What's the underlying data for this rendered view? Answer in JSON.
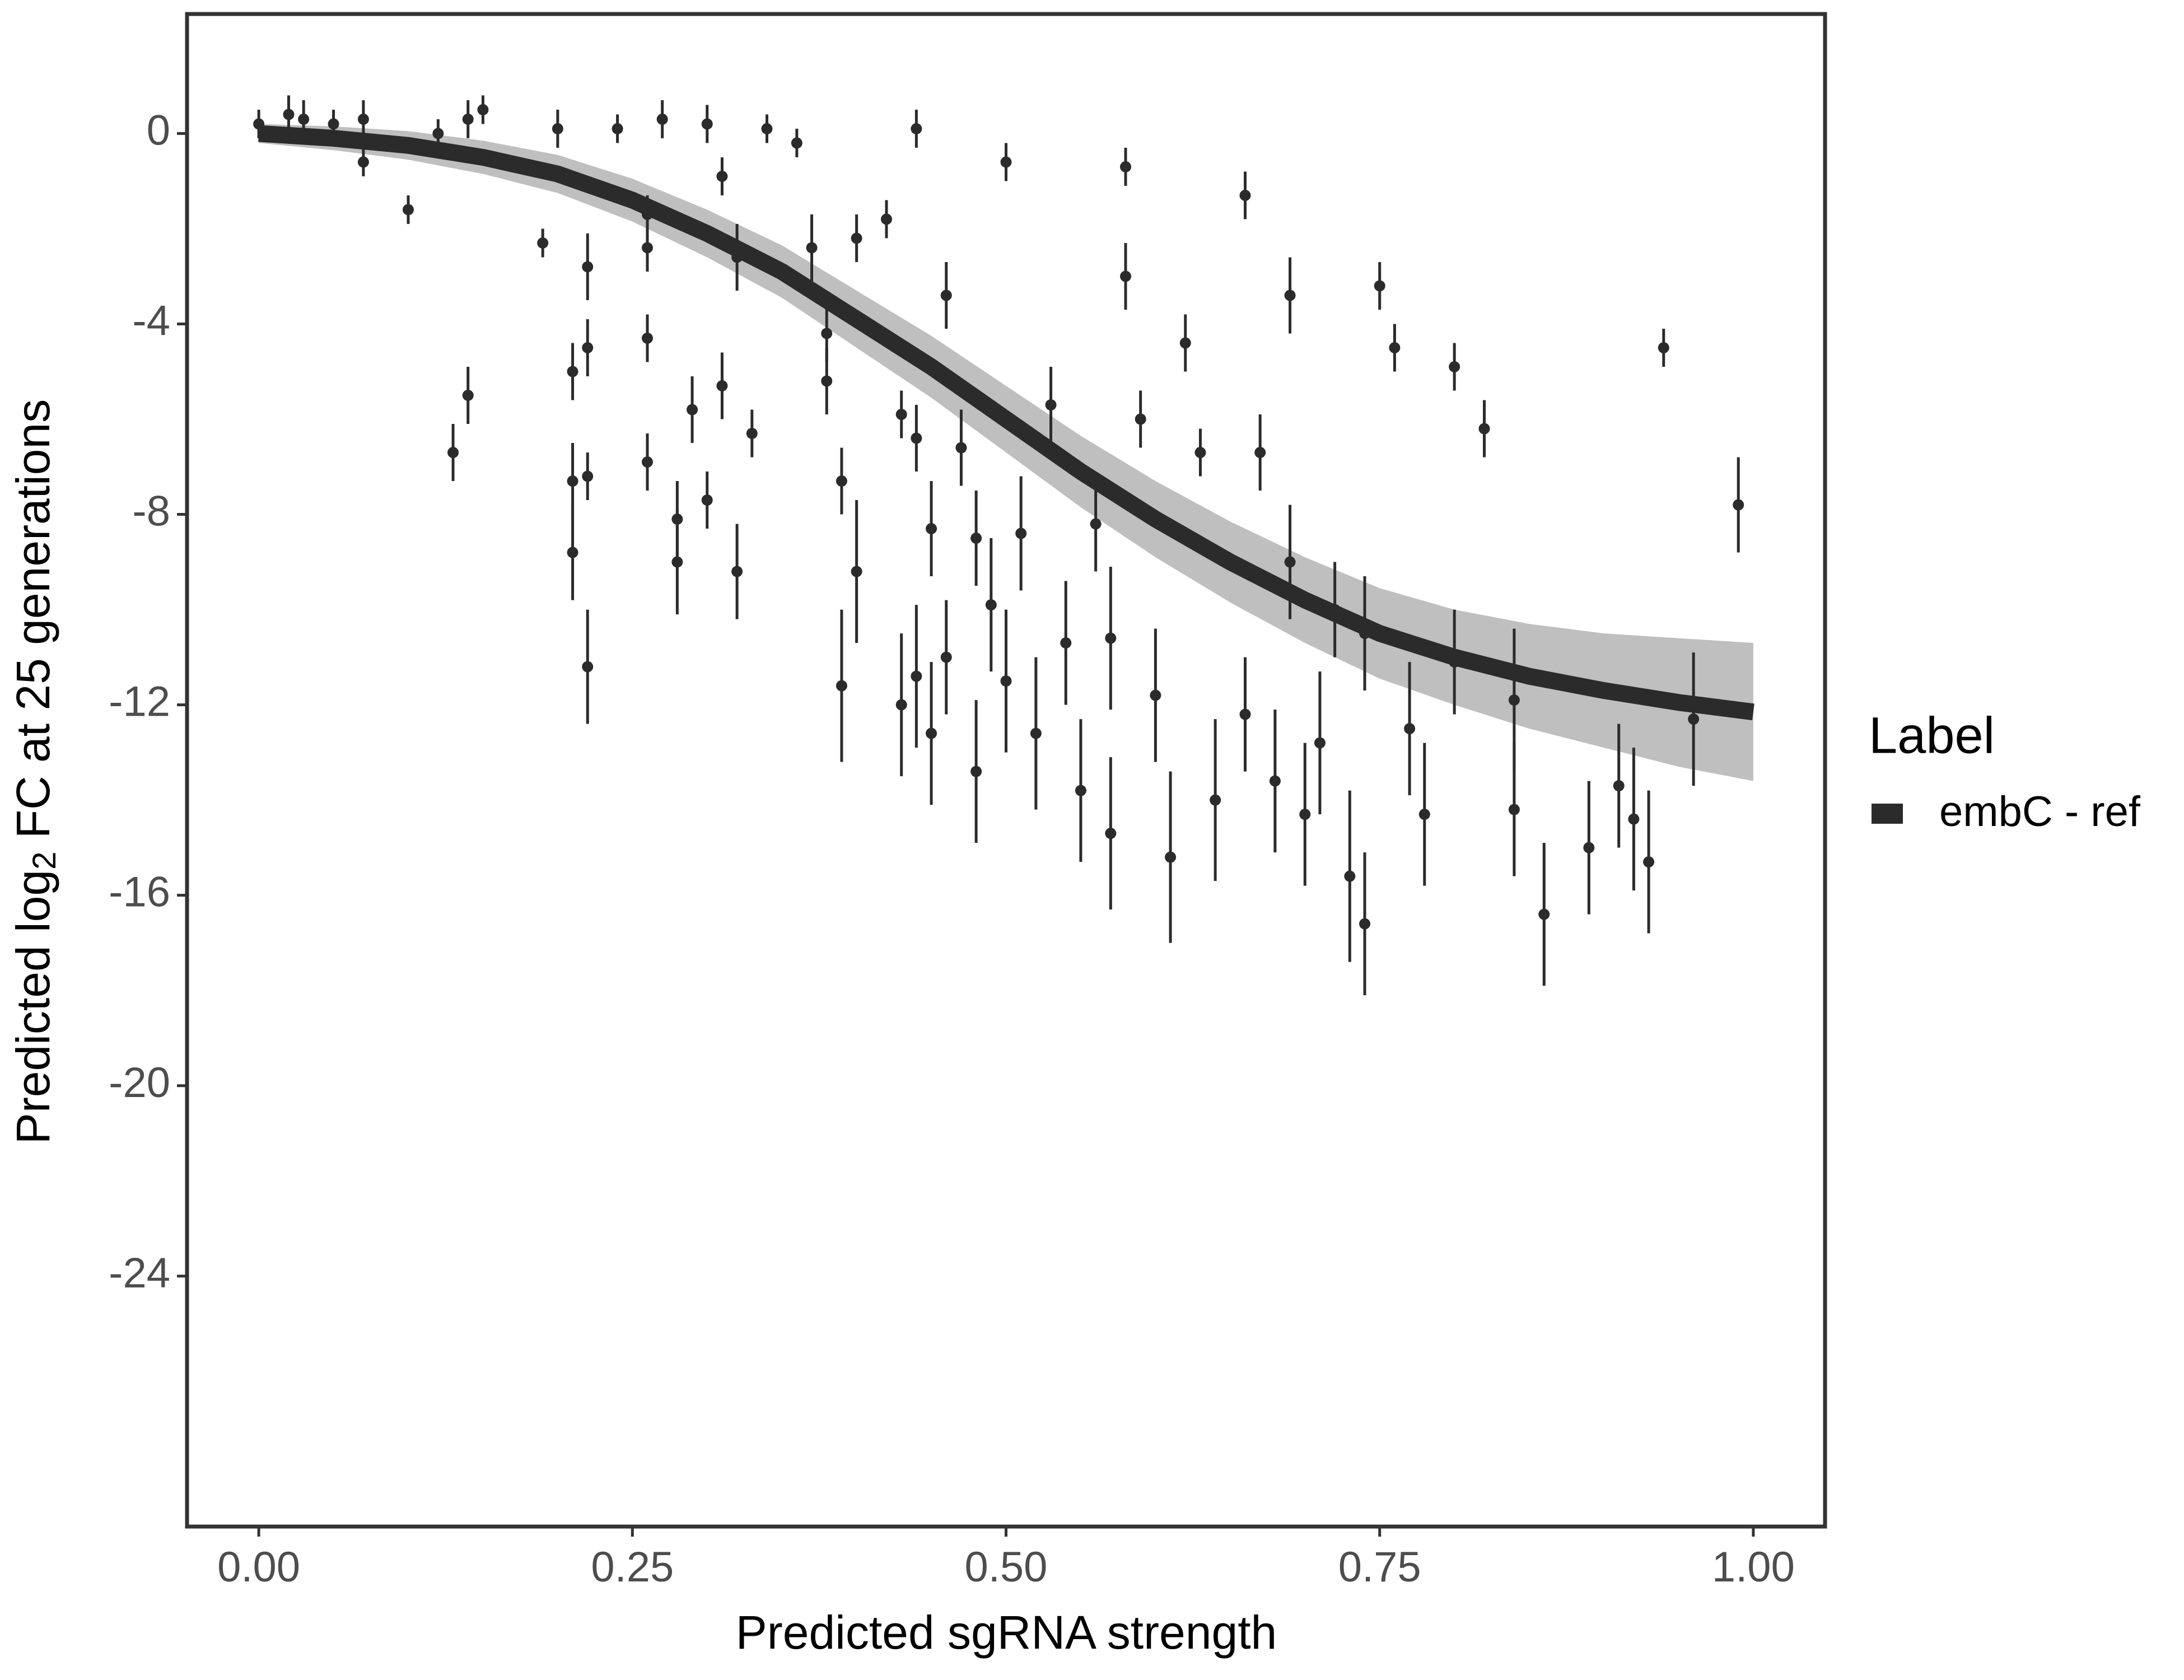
{
  "chart_data": {
    "type": "scatter",
    "xlabel": "Predicted sgRNA strength",
    "ylabel": {
      "prefix": "Predicted  log",
      "sub": "2",
      "suffix": " FC at 25 generations"
    },
    "xlim": [
      -0.048,
      1.048
    ],
    "ylim": [
      -29.26,
      2.51
    ],
    "xticks": [
      {
        "value": 0,
        "label": "0.00"
      },
      {
        "value": 0.25,
        "label": "0.25"
      },
      {
        "value": 0.5,
        "label": "0.50"
      },
      {
        "value": 0.75,
        "label": "0.75"
      },
      {
        "value": 1,
        "label": "1.00"
      }
    ],
    "yticks": [
      0,
      -4,
      -8,
      -12,
      -16,
      -20,
      -24
    ],
    "legend": {
      "title": "Label",
      "position": "right"
    },
    "series": [
      {
        "name": "embC - ref",
        "color": "#2b2b2b",
        "band_color": "#a9a9a9",
        "points": {
          "x": [
            0.0,
            0.02,
            0.03,
            0.05,
            0.07,
            0.07,
            0.1,
            0.12,
            0.14,
            0.15,
            0.13,
            0.14,
            0.19,
            0.2,
            0.21,
            0.21,
            0.21,
            0.22,
            0.22,
            0.22,
            0.22,
            0.24,
            0.26,
            0.26,
            0.26,
            0.26,
            0.27,
            0.28,
            0.28,
            0.29,
            0.3,
            0.3,
            0.31,
            0.31,
            0.32,
            0.32,
            0.33,
            0.34,
            0.36,
            0.37,
            0.38,
            0.38,
            0.39,
            0.39,
            0.4,
            0.4,
            0.42,
            0.43,
            0.43,
            0.44,
            0.44,
            0.44,
            0.45,
            0.45,
            0.46,
            0.46,
            0.47,
            0.48,
            0.48,
            0.49,
            0.5,
            0.5,
            0.51,
            0.52,
            0.53,
            0.54,
            0.55,
            0.56,
            0.57,
            0.57,
            0.58,
            0.58,
            0.59,
            0.6,
            0.61,
            0.62,
            0.63,
            0.64,
            0.66,
            0.66,
            0.67,
            0.68,
            0.69,
            0.69,
            0.7,
            0.71,
            0.72,
            0.73,
            0.74,
            0.74,
            0.75,
            0.76,
            0.77,
            0.78,
            0.8,
            0.8,
            0.82,
            0.84,
            0.84,
            0.86,
            0.89,
            0.91,
            0.92,
            0.93,
            0.94,
            0.96,
            0.99
          ],
          "values": [
            0.2,
            0.4,
            0.3,
            0.2,
            0.3,
            -0.6,
            -1.6,
            0,
            0.3,
            0.5,
            -6.7,
            -5.5,
            -2.3,
            0.1,
            -5,
            -7.3,
            -8.8,
            -2.8,
            -4.5,
            -7.2,
            -11.2,
            0.1,
            -1.7,
            -2.4,
            -4.3,
            -6.9,
            0.3,
            -8.1,
            -9,
            -5.8,
            -7.7,
            0.2,
            -0.9,
            -5.3,
            -2.6,
            -9.2,
            -6.3,
            0.1,
            -0.2,
            -2.4,
            -4.2,
            -5.2,
            -7.3,
            -11.6,
            -9.2,
            -2.2,
            -1.8,
            -5.9,
            -12,
            -6.4,
            -11.4,
            0.1,
            -8.3,
            -12.6,
            -3.4,
            -11,
            -6.6,
            -13.4,
            -8.5,
            -9.9,
            -11.5,
            -0.6,
            -8.4,
            -12.6,
            -5.7,
            -10.7,
            -13.8,
            -8.2,
            -10.6,
            -14.7,
            -0.7,
            -3,
            -6,
            -11.8,
            -15.2,
            -4.4,
            -6.7,
            -14,
            -12.2,
            -1.3,
            -6.7,
            -13.6,
            -9,
            -3.4,
            -14.3,
            -12.8,
            -10,
            -15.6,
            -16.6,
            -10.5,
            -3.2,
            -4.5,
            -12.5,
            -14.3,
            -11.1,
            -4.9,
            -6.2,
            -11.9,
            -14.2,
            -16.4,
            -15,
            -13.7,
            -14.4,
            -15.3,
            -4.5,
            -12.3,
            -7.8
          ],
          "errors": [
            0.3,
            0.4,
            0.4,
            0.3,
            0.4,
            0.3,
            0.3,
            0.3,
            0.4,
            0.3,
            0.6,
            0.6,
            0.3,
            0.4,
            0.6,
            0.8,
            1,
            0.7,
            0.6,
            0.5,
            1.2,
            0.3,
            0.4,
            0.5,
            0.5,
            0.6,
            0.4,
            0.8,
            1.1,
            0.7,
            0.6,
            0.4,
            0.4,
            0.7,
            0.7,
            1,
            0.5,
            0.3,
            0.3,
            0.7,
            0.6,
            0.7,
            0.7,
            1.6,
            1.5,
            0.5,
            0.4,
            0.5,
            1.5,
            0.7,
            1.5,
            0.4,
            1,
            1.5,
            0.7,
            1.2,
            0.8,
            1.5,
            1,
            1.4,
            1.5,
            0.4,
            1.2,
            1.6,
            0.8,
            1.3,
            1.5,
            1,
            1.5,
            1.6,
            0.4,
            0.7,
            0.6,
            1.4,
            1.8,
            0.6,
            0.5,
            1.7,
            1.2,
            0.5,
            0.8,
            1.5,
            1.2,
            0.8,
            1.5,
            1.5,
            1,
            1.8,
            1.5,
            1.2,
            0.5,
            0.5,
            1.4,
            1.5,
            1.1,
            0.5,
            0.6,
            1.5,
            1.4,
            1.5,
            1.4,
            1.3,
            1.5,
            1.5,
            0.4,
            1.4,
            1
          ]
        },
        "fit": {
          "x": [
            0,
            0.05,
            0.1,
            0.15,
            0.2,
            0.25,
            0.3,
            0.35,
            0.4,
            0.45,
            0.5,
            0.55,
            0.6,
            0.65,
            0.7,
            0.75,
            0.8,
            0.85,
            0.9,
            0.95,
            1
          ],
          "values": [
            0,
            -0.1,
            -0.25,
            -0.5,
            -0.85,
            -1.4,
            -2.1,
            -2.9,
            -3.9,
            -4.9,
            -6,
            -7.1,
            -8.1,
            -9,
            -9.8,
            -10.5,
            -11,
            -11.4,
            -11.7,
            -11.95,
            -12.15
          ],
          "upper": [
            0.2,
            0.15,
            0.05,
            -0.15,
            -0.45,
            -0.95,
            -1.6,
            -2.35,
            -3.3,
            -4.25,
            -5.3,
            -6.35,
            -7.3,
            -8.15,
            -8.9,
            -9.55,
            -10,
            -10.3,
            -10.5,
            -10.6,
            -10.7
          ],
          "lower": [
            -0.2,
            -0.35,
            -0.55,
            -0.85,
            -1.25,
            -1.85,
            -2.6,
            -3.45,
            -4.5,
            -5.55,
            -6.7,
            -7.85,
            -8.9,
            -9.85,
            -10.7,
            -11.45,
            -12,
            -12.5,
            -12.9,
            -13.3,
            -13.6
          ]
        }
      }
    ]
  }
}
